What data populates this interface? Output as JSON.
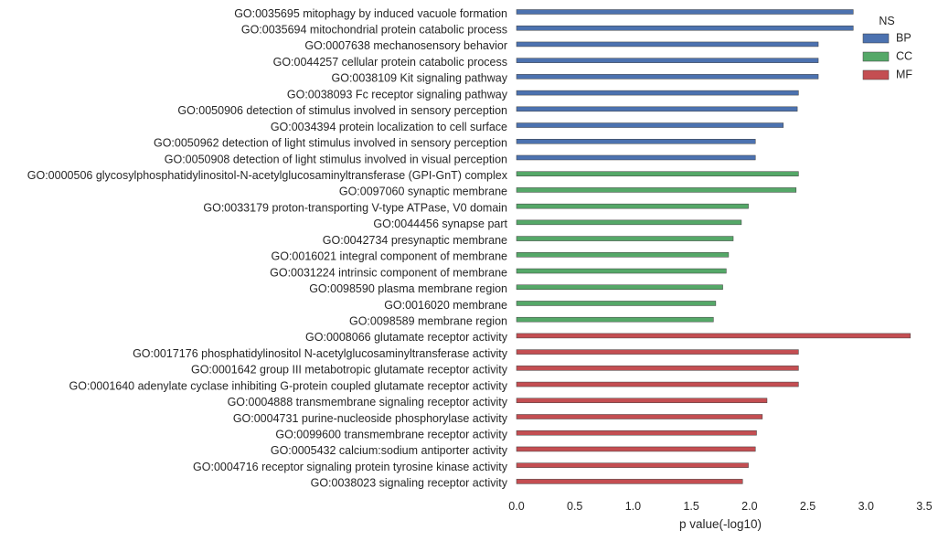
{
  "chart_data": {
    "type": "bar",
    "orientation": "horizontal",
    "xlabel": "p value(-log10)",
    "xlim": [
      0,
      3.5
    ],
    "xticks": [
      0.0,
      0.5,
      1.0,
      1.5,
      2.0,
      2.5,
      3.0,
      3.5
    ],
    "xtick_labels": [
      "0.0",
      "0.5",
      "1.0",
      "1.5",
      "2.0",
      "2.5",
      "3.0",
      "3.5"
    ],
    "grid": false,
    "legend": {
      "title": "NS",
      "placement": "top-right",
      "entries": [
        {
          "name": "BP",
          "color": "#4c72b0"
        },
        {
          "name": "CC",
          "color": "#55a868"
        },
        {
          "name": "MF",
          "color": "#c44e52"
        }
      ]
    },
    "categories": [
      {
        "label": "GO:0035695 mitophagy by induced vacuole formation",
        "group": "BP",
        "value": 2.89
      },
      {
        "label": "GO:0035694 mitochondrial protein catabolic process",
        "group": "BP",
        "value": 2.89
      },
      {
        "label": "GO:0007638 mechanosensory behavior",
        "group": "BP",
        "value": 2.59
      },
      {
        "label": "GO:0044257 cellular protein catabolic process",
        "group": "BP",
        "value": 2.59
      },
      {
        "label": "GO:0038109 Kit signaling pathway",
        "group": "BP",
        "value": 2.59
      },
      {
        "label": "GO:0038093 Fc receptor signaling pathway",
        "group": "BP",
        "value": 2.42
      },
      {
        "label": "GO:0050906 detection of stimulus involved in sensory perception",
        "group": "BP",
        "value": 2.41
      },
      {
        "label": "GO:0034394 protein localization to cell surface",
        "group": "BP",
        "value": 2.29
      },
      {
        "label": "GO:0050962 detection of light stimulus involved in sensory perception",
        "group": "BP",
        "value": 2.05
      },
      {
        "label": "GO:0050908 detection of light stimulus involved in visual perception",
        "group": "BP",
        "value": 2.05
      },
      {
        "label": "GO:0000506 glycosylphosphatidylinositol-N-acetylglucosaminyltransferase (GPI-GnT) complex",
        "group": "CC",
        "value": 2.42
      },
      {
        "label": "GO:0097060 synaptic membrane",
        "group": "CC",
        "value": 2.4
      },
      {
        "label": "GO:0033179 proton-transporting V-type ATPase, V0 domain",
        "group": "CC",
        "value": 1.99
      },
      {
        "label": "GO:0044456 synapse part",
        "group": "CC",
        "value": 1.93
      },
      {
        "label": "GO:0042734 presynaptic membrane",
        "group": "CC",
        "value": 1.86
      },
      {
        "label": "GO:0016021 integral component of membrane",
        "group": "CC",
        "value": 1.82
      },
      {
        "label": "GO:0031224 intrinsic component of membrane",
        "group": "CC",
        "value": 1.8
      },
      {
        "label": "GO:0098590 plasma membrane region",
        "group": "CC",
        "value": 1.77
      },
      {
        "label": "GO:0016020 membrane",
        "group": "CC",
        "value": 1.71
      },
      {
        "label": "GO:0098589 membrane region",
        "group": "CC",
        "value": 1.69
      },
      {
        "label": "GO:0008066 glutamate receptor activity",
        "group": "MF",
        "value": 3.38
      },
      {
        "label": "GO:0017176 phosphatidylinositol N-acetylglucosaminyltransferase activity",
        "group": "MF",
        "value": 2.42
      },
      {
        "label": "GO:0001642 group III metabotropic glutamate receptor activity",
        "group": "MF",
        "value": 2.42
      },
      {
        "label": "GO:0001640 adenylate cyclase inhibiting G-protein coupled glutamate receptor activity",
        "group": "MF",
        "value": 2.42
      },
      {
        "label": "GO:0004888 transmembrane signaling receptor activity",
        "group": "MF",
        "value": 2.15
      },
      {
        "label": "GO:0004731 purine-nucleoside phosphorylase activity",
        "group": "MF",
        "value": 2.11
      },
      {
        "label": "GO:0099600 transmembrane receptor activity",
        "group": "MF",
        "value": 2.06
      },
      {
        "label": "GO:0005432 calcium:sodium antiporter activity",
        "group": "MF",
        "value": 2.05
      },
      {
        "label": "GO:0004716 receptor signaling protein tyrosine kinase activity",
        "group": "MF",
        "value": 1.99
      },
      {
        "label": "GO:0038023 signaling receptor activity",
        "group": "MF",
        "value": 1.94
      }
    ]
  }
}
